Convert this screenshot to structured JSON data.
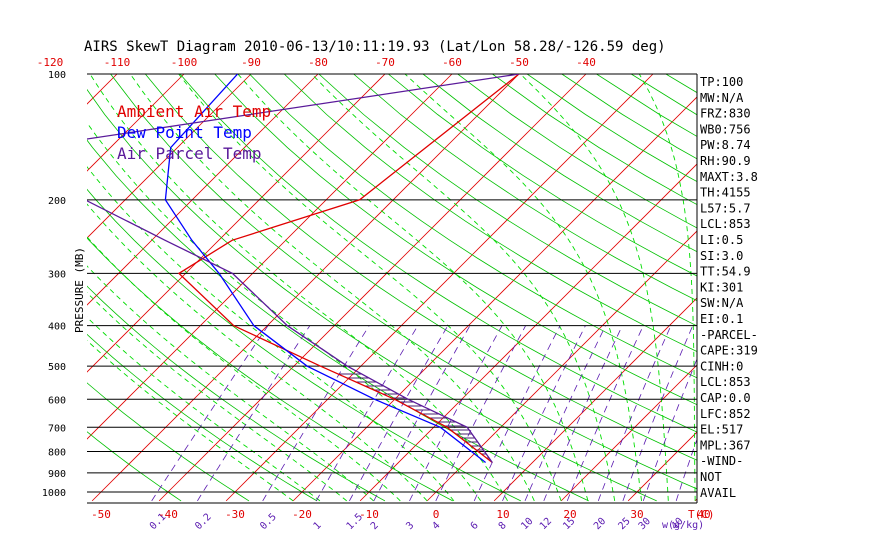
{
  "chart_data": {
    "type": "line",
    "title": "AIRS SkewT Diagram 2010-06-13/10:11:19.93 (Lat/Lon 58.28/-126.59 deg)",
    "ylabel": "PRESSURE (MB)",
    "xlabel_bottom_unit": "T(C)",
    "mixing_ratio_unit": "w(g/kg)",
    "y_scale": "log",
    "ylim": [
      1000,
      100
    ],
    "pressure_ticks": [
      "100",
      "200",
      "300",
      "400",
      "500",
      "600",
      "700",
      "800",
      "900",
      "1000"
    ],
    "pressure_tick_values": [
      100,
      200,
      300,
      400,
      500,
      600,
      700,
      800,
      900,
      1000
    ],
    "bottom_temp_ticks": [
      "-50",
      "-40",
      "-30",
      "-20",
      "-10",
      "0",
      "10",
      "20",
      "30",
      "40"
    ],
    "bottom_temp_values": [
      -50,
      -40,
      -30,
      -20,
      -10,
      0,
      10,
      20,
      30,
      40
    ],
    "top_temp_ticks": [
      "-120",
      "-110",
      "-100",
      "-90",
      "-80",
      "-70",
      "-60",
      "-50",
      "-40"
    ],
    "top_temp_values": [
      -120,
      -110,
      -100,
      -90,
      -80,
      -70,
      -60,
      -50,
      -40
    ],
    "mixing_ratio_ticks": [
      "0.1",
      "0.2",
      "0.5",
      "1",
      "1.5",
      "2",
      "3",
      "4",
      "6",
      "8",
      "10",
      "12",
      "15",
      "20",
      "25",
      "30",
      "40"
    ],
    "legend": [
      "Ambient Air Temp",
      "Dew Point Temp",
      "Air Parcel Temp"
    ],
    "series": [
      {
        "name": "Ambient Air Temp",
        "color": "#e00000",
        "points": [
          [
            100,
            -50
          ],
          [
            200,
            -55
          ],
          [
            250,
            -68
          ],
          [
            300,
            -71
          ],
          [
            400,
            -55
          ],
          [
            500,
            -36
          ],
          [
            600,
            -20
          ],
          [
            700,
            -8
          ],
          [
            850,
            4
          ]
        ]
      },
      {
        "name": "Dew Point Temp",
        "color": "#0000ff",
        "points": [
          [
            100,
            -92
          ],
          [
            150,
            -91
          ],
          [
            200,
            -84
          ],
          [
            250,
            -74
          ],
          [
            300,
            -65
          ],
          [
            400,
            -52
          ],
          [
            500,
            -38
          ],
          [
            600,
            -23
          ],
          [
            700,
            -9
          ],
          [
            850,
            3
          ]
        ]
      },
      {
        "name": "Air Parcel Temp",
        "color": "#5a1a9a",
        "points": [
          [
            100,
            -50
          ],
          [
            150,
            -112
          ],
          [
            200,
            -96
          ],
          [
            250,
            -78
          ],
          [
            300,
            -63
          ],
          [
            400,
            -47
          ],
          [
            500,
            -32
          ],
          [
            600,
            -18
          ],
          [
            700,
            -5
          ],
          [
            850,
            4
          ]
        ]
      }
    ],
    "stats": [
      "TP:100",
      "MW:N/A",
      "FRZ:830",
      "WB0:756",
      "PW:8.74",
      "RH:90.9",
      "MAXT:3.8",
      "TH:4155",
      "L57:5.7",
      "LCL:853",
      "LI:0.5",
      "SI:3.0",
      "TT:54.9",
      "KI:301",
      "SW:N/A",
      "EI:0.1",
      "-PARCEL-",
      "CAPE:319",
      "CINH:0",
      "LCL:853",
      "CAP:0.0",
      "LFC:852",
      "EL:517",
      "MPL:367",
      "-WIND-",
      "NOT",
      "AVAIL"
    ],
    "colors": {
      "isotherm": "#e00000",
      "dry_adiabat": "#00c000",
      "moist_adiabat": "#00dd00",
      "mixing_ratio": "#5a1ab0",
      "isobar": "#000000",
      "dewpoint": "#0000ff",
      "parcel": "#5a1a9a",
      "ambient": "#e00000"
    }
  }
}
